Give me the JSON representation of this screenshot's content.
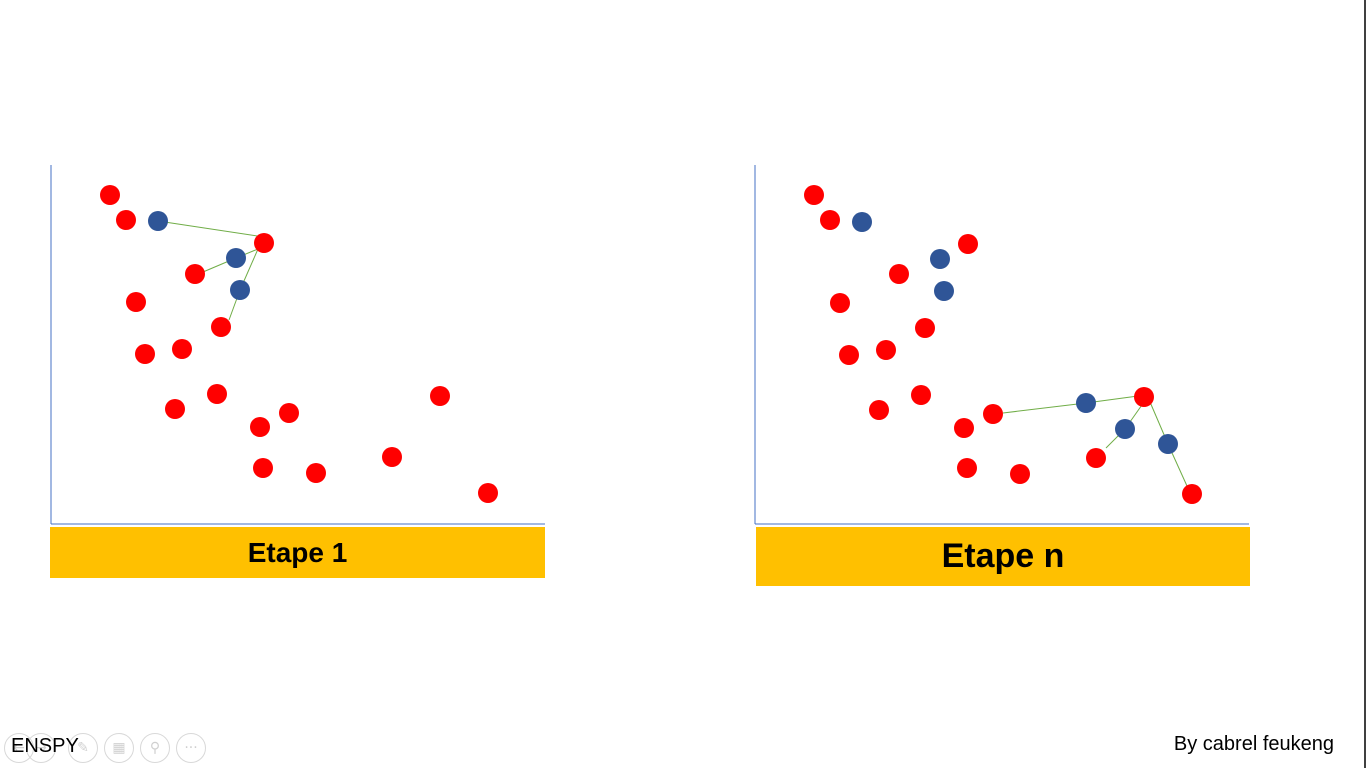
{
  "panels": [
    {
      "label": "Etape 1",
      "red_points": [
        [
          110,
          195
        ],
        [
          126,
          220
        ],
        [
          264,
          243
        ],
        [
          195,
          274
        ],
        [
          136,
          302
        ],
        [
          221,
          327
        ],
        [
          145,
          354
        ],
        [
          182,
          349
        ],
        [
          175,
          409
        ],
        [
          217,
          394
        ],
        [
          260,
          427
        ],
        [
          289,
          413
        ],
        [
          263,
          468
        ],
        [
          316,
          473
        ],
        [
          392,
          457
        ],
        [
          440,
          396
        ],
        [
          488,
          493
        ]
      ],
      "blue_points": [
        [
          158,
          221
        ],
        [
          236,
          258
        ],
        [
          240,
          290
        ]
      ],
      "edges": [
        [
          [
            158,
            221
          ],
          [
            264,
            237
          ]
        ],
        [
          [
            203,
            272
          ],
          [
            236,
            258
          ]
        ],
        [
          [
            236,
            258
          ],
          [
            258,
            249
          ]
        ],
        [
          [
            240,
            290
          ],
          [
            258,
            249
          ]
        ],
        [
          [
            229,
            320
          ],
          [
            240,
            290
          ]
        ]
      ]
    },
    {
      "label": "Etape n",
      "red_points": [
        [
          814,
          195
        ],
        [
          830,
          220
        ],
        [
          968,
          244
        ],
        [
          899,
          274
        ],
        [
          840,
          303
        ],
        [
          925,
          328
        ],
        [
          849,
          355
        ],
        [
          886,
          350
        ],
        [
          879,
          410
        ],
        [
          921,
          395
        ],
        [
          964,
          428
        ],
        [
          993,
          414
        ],
        [
          967,
          468
        ],
        [
          1020,
          474
        ],
        [
          1096,
          458
        ],
        [
          1144,
          397
        ],
        [
          1192,
          494
        ]
      ],
      "blue_points": [
        [
          862,
          222
        ],
        [
          940,
          259
        ],
        [
          944,
          291
        ]
      ],
      "edges": [
        [
          [
            1003,
            413
          ],
          [
            1086,
            403
          ]
        ],
        [
          [
            1086,
            403
          ],
          [
            1138,
            396
          ]
        ],
        [
          [
            1106,
            448
          ],
          [
            1125,
            429
          ]
        ],
        [
          [
            1125,
            429
          ],
          [
            1144,
            402
          ]
        ],
        [
          [
            1150,
            402
          ],
          [
            1168,
            444
          ]
        ],
        [
          [
            1168,
            444
          ],
          [
            1187,
            486
          ]
        ]
      ],
      "extra_blue_points": [
        [
          1086,
          403
        ],
        [
          1125,
          429
        ],
        [
          1168,
          444
        ]
      ]
    }
  ],
  "colors": {
    "red": "#ff0000",
    "blue": "#2f5597",
    "edge": "#70ad47",
    "axis": "#4472c4",
    "label_bg": "#ffc000"
  },
  "footer": {
    "left": "ENSPY",
    "right": "By cabrel feukeng"
  },
  "toolbar": {
    "icons": [
      "previous-icon",
      "next-icon",
      "pen-icon",
      "slides-icon",
      "zoom-icon",
      "more-icon"
    ]
  }
}
